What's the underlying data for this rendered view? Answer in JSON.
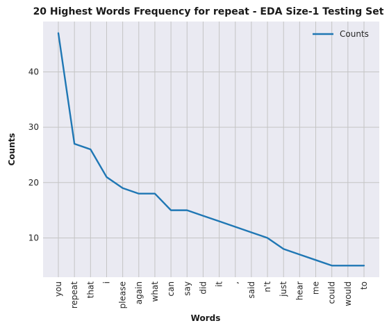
{
  "chart_data": {
    "type": "line",
    "title": "20 Highest Words Frequency for repeat - EDA Size-1 Testing Set",
    "xlabel": "Words",
    "ylabel": "Counts",
    "categories": [
      "you",
      "repeat",
      "that",
      "i",
      "please",
      "again",
      "what",
      "can",
      "say",
      "did",
      "it",
      ",",
      "said",
      "n't",
      "just",
      "hear",
      "me",
      "could",
      "would",
      "to"
    ],
    "series": [
      {
        "name": "Counts",
        "values": [
          47,
          27,
          26,
          21,
          19,
          18,
          18,
          15,
          15,
          14,
          13,
          12,
          11,
          10,
          8,
          7,
          6,
          5,
          5,
          5
        ]
      }
    ],
    "ylim": [
      2.9,
      49.1
    ],
    "yticks": [
      10,
      20,
      30,
      40
    ],
    "grid": true,
    "legend": "top-right",
    "colors": {
      "line": "#1f77b4",
      "plot_bg": "#eaeaf2",
      "grid": "#c4c4c4"
    }
  }
}
